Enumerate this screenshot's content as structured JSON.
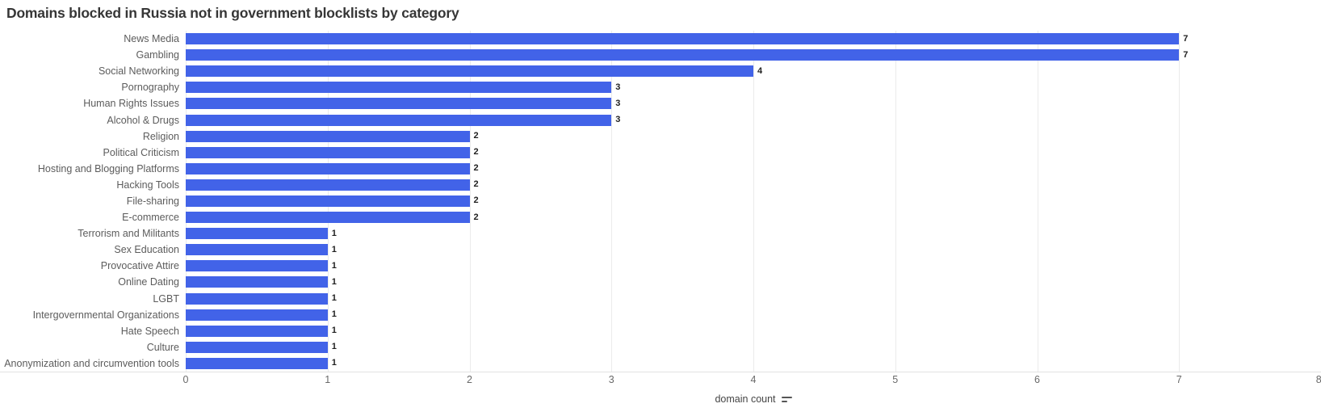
{
  "page": {
    "background_color": "#ffffff"
  },
  "chart_data": {
    "type": "bar",
    "orientation": "horizontal",
    "title": "Domains blocked in Russia not in government blocklists by category",
    "xlabel": "domain count",
    "ylabel": "",
    "xlim": [
      0,
      8
    ],
    "xticks": [
      0,
      1,
      2,
      3,
      4,
      5,
      6,
      7,
      8
    ],
    "grid": true,
    "legend": "none",
    "bar_color": "#4263e8",
    "value_labels_shown": true,
    "sort": "descending",
    "categories": [
      "News Media",
      "Gambling",
      "Social Networking",
      "Pornography",
      "Human Rights Issues",
      "Alcohol & Drugs",
      "Religion",
      "Political Criticism",
      "Hosting and Blogging Platforms",
      "Hacking Tools",
      "File-sharing",
      "E-commerce",
      "Terrorism and Militants",
      "Sex Education",
      "Provocative Attire",
      "Online Dating",
      "LGBT",
      "Intergovernmental Organizations",
      "Hate Speech",
      "Culture",
      "Anonymization and circumvention tools"
    ],
    "values": [
      7,
      7,
      4,
      3,
      3,
      3,
      2,
      2,
      2,
      2,
      2,
      2,
      1,
      1,
      1,
      1,
      1,
      1,
      1,
      1,
      1
    ]
  },
  "icons": {
    "sort_icon": "sort-descending-icon"
  },
  "colors": {
    "title_text": "#363636",
    "category_text": "#5c5c5c",
    "tick_text": "#696969",
    "value_text": "#1f1f1f",
    "gridline": "#ebebeb",
    "axis_line": "#e2e2e2",
    "bar": "#4263e8"
  }
}
